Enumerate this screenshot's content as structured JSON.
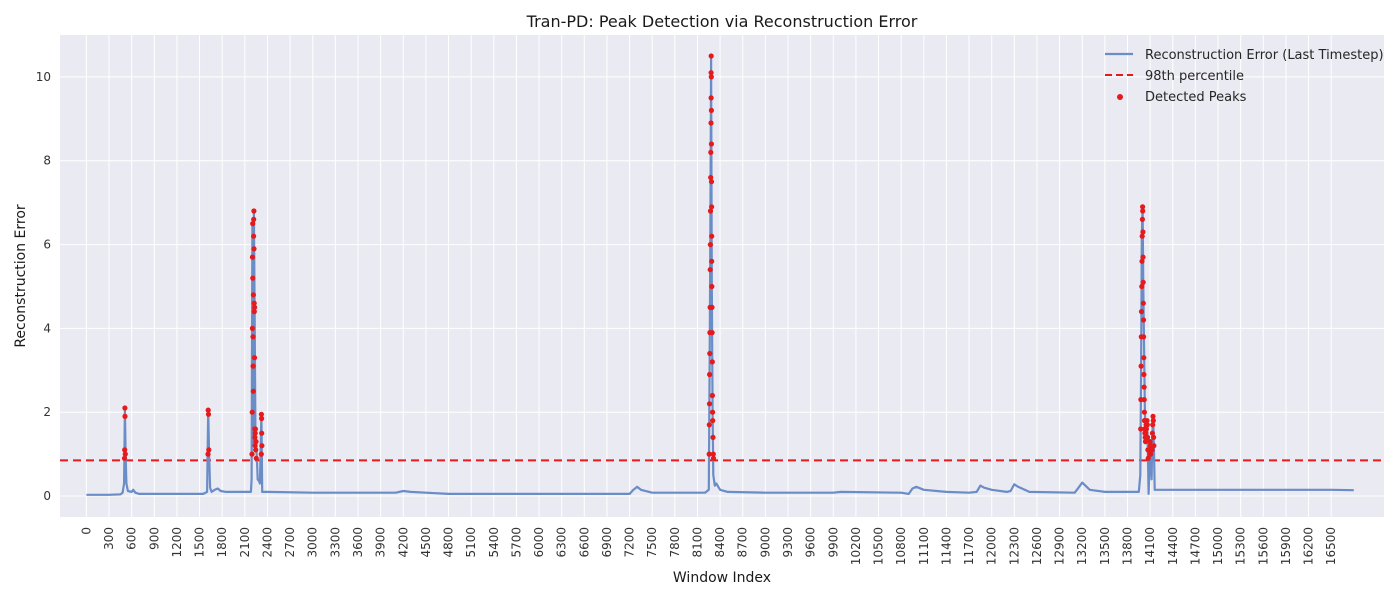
{
  "chart_data": {
    "type": "line",
    "title": "Tran-PD: Peak Detection via Reconstruction Error",
    "xlabel": "Window Index",
    "ylabel": "Reconstruction Error",
    "xlim": [
      -350,
      17200
    ],
    "ylim": [
      -0.5,
      11.0
    ],
    "grid": true,
    "legend_position": "top-right",
    "xticks": [
      0,
      300,
      600,
      900,
      1200,
      1500,
      1800,
      2100,
      2400,
      2700,
      3000,
      3300,
      3600,
      3900,
      4200,
      4500,
      4800,
      5100,
      5400,
      5700,
      6000,
      6300,
      6600,
      6900,
      7200,
      7500,
      7800,
      8100,
      8400,
      8700,
      9000,
      9300,
      9600,
      9900,
      10200,
      10500,
      10800,
      11100,
      11400,
      11700,
      12000,
      12300,
      12600,
      12900,
      13200,
      13500,
      13800,
      14100,
      14400,
      14700,
      15000,
      15300,
      15600,
      15900,
      16200,
      16500
    ],
    "yticks": [
      0,
      2,
      4,
      6,
      8,
      10
    ],
    "colors": {
      "line": "#6A8CC7",
      "threshold": "#E41A1C",
      "peaks": "#E41A1C",
      "plot_bg": "#EAEAF2",
      "grid": "#FFFFFF"
    },
    "legend": [
      {
        "label": "Reconstruction Error (Last Timestep)",
        "kind": "line"
      },
      {
        "label": "98th percentile",
        "kind": "dashed"
      },
      {
        "label": "Detected Peaks",
        "kind": "marker"
      }
    ],
    "threshold": {
      "name": "98th percentile",
      "value": 0.85
    },
    "series": [
      {
        "name": "Reconstruction Error (Last Timestep)",
        "points": [
          [
            0,
            0.03
          ],
          [
            300,
            0.03
          ],
          [
            450,
            0.04
          ],
          [
            480,
            0.08
          ],
          [
            500,
            0.3
          ],
          [
            510,
            2.1
          ],
          [
            520,
            1.0
          ],
          [
            530,
            0.3
          ],
          [
            550,
            0.12
          ],
          [
            600,
            0.1
          ],
          [
            620,
            0.15
          ],
          [
            650,
            0.08
          ],
          [
            700,
            0.05
          ],
          [
            900,
            0.05
          ],
          [
            1200,
            0.05
          ],
          [
            1550,
            0.05
          ],
          [
            1600,
            0.1
          ],
          [
            1615,
            2.05
          ],
          [
            1625,
            1.1
          ],
          [
            1640,
            0.2
          ],
          [
            1660,
            0.1
          ],
          [
            1700,
            0.15
          ],
          [
            1740,
            0.18
          ],
          [
            1780,
            0.12
          ],
          [
            1850,
            0.1
          ],
          [
            2100,
            0.1
          ],
          [
            2180,
            0.1
          ],
          [
            2190,
            0.4
          ],
          [
            2200,
            6.5
          ],
          [
            2210,
            1.2
          ],
          [
            2220,
            6.8
          ],
          [
            2230,
            4.5
          ],
          [
            2240,
            1.6
          ],
          [
            2250,
            1.2
          ],
          [
            2260,
            0.9
          ],
          [
            2270,
            0.4
          ],
          [
            2290,
            0.35
          ],
          [
            2300,
            0.3
          ],
          [
            2320,
            1.95
          ],
          [
            2330,
            0.1
          ],
          [
            2340,
            0.1
          ],
          [
            2400,
            0.1
          ],
          [
            3000,
            0.08
          ],
          [
            4100,
            0.08
          ],
          [
            4200,
            0.12
          ],
          [
            4300,
            0.1
          ],
          [
            4500,
            0.08
          ],
          [
            4800,
            0.05
          ],
          [
            6000,
            0.05
          ],
          [
            7200,
            0.05
          ],
          [
            7250,
            0.15
          ],
          [
            7300,
            0.22
          ],
          [
            7350,
            0.15
          ],
          [
            7500,
            0.08
          ],
          [
            8200,
            0.08
          ],
          [
            8250,
            0.15
          ],
          [
            8260,
            3.0
          ],
          [
            8270,
            6.0
          ],
          [
            8280,
            10.5
          ],
          [
            8290,
            5.0
          ],
          [
            8300,
            2.0
          ],
          [
            8310,
            0.5
          ],
          [
            8330,
            0.25
          ],
          [
            8350,
            0.3
          ],
          [
            8400,
            0.15
          ],
          [
            8500,
            0.1
          ],
          [
            9000,
            0.08
          ],
          [
            9900,
            0.08
          ],
          [
            10000,
            0.1
          ],
          [
            10800,
            0.08
          ],
          [
            10900,
            0.05
          ],
          [
            10950,
            0.18
          ],
          [
            11000,
            0.22
          ],
          [
            11100,
            0.15
          ],
          [
            11400,
            0.1
          ],
          [
            11700,
            0.08
          ],
          [
            11800,
            0.1
          ],
          [
            11850,
            0.25
          ],
          [
            11900,
            0.2
          ],
          [
            12000,
            0.15
          ],
          [
            12200,
            0.1
          ],
          [
            12250,
            0.12
          ],
          [
            12300,
            0.28
          ],
          [
            12350,
            0.22
          ],
          [
            12500,
            0.1
          ],
          [
            13100,
            0.08
          ],
          [
            13150,
            0.2
          ],
          [
            13200,
            0.32
          ],
          [
            13300,
            0.15
          ],
          [
            13500,
            0.1
          ],
          [
            13950,
            0.1
          ],
          [
            13970,
            0.5
          ],
          [
            13980,
            3.0
          ],
          [
            13990,
            6.2
          ],
          [
            14000,
            6.9
          ],
          [
            14010,
            5.0
          ],
          [
            14020,
            3.5
          ],
          [
            14030,
            2.0
          ],
          [
            14040,
            1.5
          ],
          [
            14050,
            1.3
          ],
          [
            14060,
            1.8
          ],
          [
            14070,
            1.0
          ],
          [
            14080,
            0.05
          ],
          [
            14090,
            0.6
          ],
          [
            14100,
            1.3
          ],
          [
            14110,
            1.0
          ],
          [
            14120,
            0.4
          ],
          [
            14130,
            1.5
          ],
          [
            14140,
            1.9
          ],
          [
            14150,
            1.2
          ],
          [
            14160,
            0.15
          ],
          [
            14200,
            0.15
          ],
          [
            15000,
            0.15
          ],
          [
            16500,
            0.15
          ],
          [
            16800,
            0.14
          ]
        ]
      }
    ],
    "peaks": {
      "name": "Detected Peaks",
      "points": [
        [
          505,
          0.9
        ],
        [
          508,
          1.1
        ],
        [
          510,
          2.1
        ],
        [
          512,
          1.9
        ],
        [
          515,
          1.0
        ],
        [
          1612,
          1.0
        ],
        [
          1615,
          2.05
        ],
        [
          1618,
          1.95
        ],
        [
          1622,
          1.1
        ],
        [
          2195,
          1.0
        ],
        [
          2198,
          2.0
        ],
        [
          2200,
          4.0
        ],
        [
          2202,
          5.7
        ],
        [
          2204,
          6.5
        ],
        [
          2206,
          5.2
        ],
        [
          2208,
          3.8
        ],
        [
          2210,
          3.1
        ],
        [
          2212,
          2.5
        ],
        [
          2214,
          4.8
        ],
        [
          2216,
          6.2
        ],
        [
          2218,
          6.6
        ],
        [
          2220,
          6.8
        ],
        [
          2222,
          5.9
        ],
        [
          2224,
          4.6
        ],
        [
          2226,
          4.4
        ],
        [
          2228,
          3.3
        ],
        [
          2230,
          4.5
        ],
        [
          2232,
          1.6
        ],
        [
          2234,
          1.4
        ],
        [
          2236,
          1.2
        ],
        [
          2238,
          1.5
        ],
        [
          2240,
          1.6
        ],
        [
          2244,
          1.1
        ],
        [
          2248,
          1.3
        ],
        [
          2252,
          0.9
        ],
        [
          2318,
          1.0
        ],
        [
          2320,
          1.95
        ],
        [
          2322,
          1.85
        ],
        [
          2324,
          1.5
        ],
        [
          2326,
          1.2
        ],
        [
          8255,
          1.0
        ],
        [
          8257,
          1.7
        ],
        [
          8259,
          2.2
        ],
        [
          8261,
          2.9
        ],
        [
          8263,
          3.4
        ],
        [
          8265,
          3.9
        ],
        [
          8267,
          4.5
        ],
        [
          8269,
          5.4
        ],
        [
          8271,
          6.0
        ],
        [
          8273,
          6.8
        ],
        [
          8275,
          7.6
        ],
        [
          8277,
          8.2
        ],
        [
          8279,
          8.9
        ],
        [
          8280,
          9.5
        ],
        [
          8281,
          10.1
        ],
        [
          8282,
          10.5
        ],
        [
          8283,
          10.0
        ],
        [
          8284,
          9.2
        ],
        [
          8285,
          8.4
        ],
        [
          8286,
          7.5
        ],
        [
          8287,
          6.9
        ],
        [
          8288,
          6.2
        ],
        [
          8289,
          5.6
        ],
        [
          8290,
          5.0
        ],
        [
          8292,
          4.5
        ],
        [
          8294,
          3.9
        ],
        [
          8296,
          3.2
        ],
        [
          8298,
          2.4
        ],
        [
          8300,
          2.0
        ],
        [
          8302,
          1.8
        ],
        [
          8306,
          1.4
        ],
        [
          8310,
          1.0
        ],
        [
          8312,
          0.9
        ],
        [
          13975,
          1.6
        ],
        [
          13978,
          2.3
        ],
        [
          13980,
          3.1
        ],
        [
          13983,
          3.8
        ],
        [
          13986,
          4.4
        ],
        [
          13989,
          5.0
        ],
        [
          13992,
          5.6
        ],
        [
          13995,
          6.2
        ],
        [
          13998,
          6.6
        ],
        [
          14000,
          6.9
        ],
        [
          14002,
          6.8
        ],
        [
          14004,
          6.3
        ],
        [
          14006,
          5.7
        ],
        [
          14008,
          5.1
        ],
        [
          14010,
          4.6
        ],
        [
          14012,
          4.2
        ],
        [
          14014,
          3.8
        ],
        [
          14016,
          3.3
        ],
        [
          14018,
          2.9
        ],
        [
          14020,
          2.6
        ],
        [
          14022,
          2.3
        ],
        [
          14024,
          2.0
        ],
        [
          14026,
          1.8
        ],
        [
          14028,
          1.6
        ],
        [
          14030,
          1.5
        ],
        [
          14034,
          1.4
        ],
        [
          14038,
          1.3
        ],
        [
          14042,
          1.5
        ],
        [
          14046,
          1.7
        ],
        [
          14050,
          1.6
        ],
        [
          14054,
          1.4
        ],
        [
          14058,
          1.8
        ],
        [
          14062,
          1.7
        ],
        [
          14066,
          1.4
        ],
        [
          14070,
          1.1
        ],
        [
          14074,
          0.9
        ],
        [
          14096,
          1.0
        ],
        [
          14100,
          1.3
        ],
        [
          14104,
          1.2
        ],
        [
          14108,
          1.0
        ],
        [
          14126,
          1.1
        ],
        [
          14130,
          1.5
        ],
        [
          14134,
          1.7
        ],
        [
          14138,
          1.9
        ],
        [
          14142,
          1.8
        ],
        [
          14146,
          1.4
        ],
        [
          14150,
          1.2
        ]
      ]
    }
  }
}
